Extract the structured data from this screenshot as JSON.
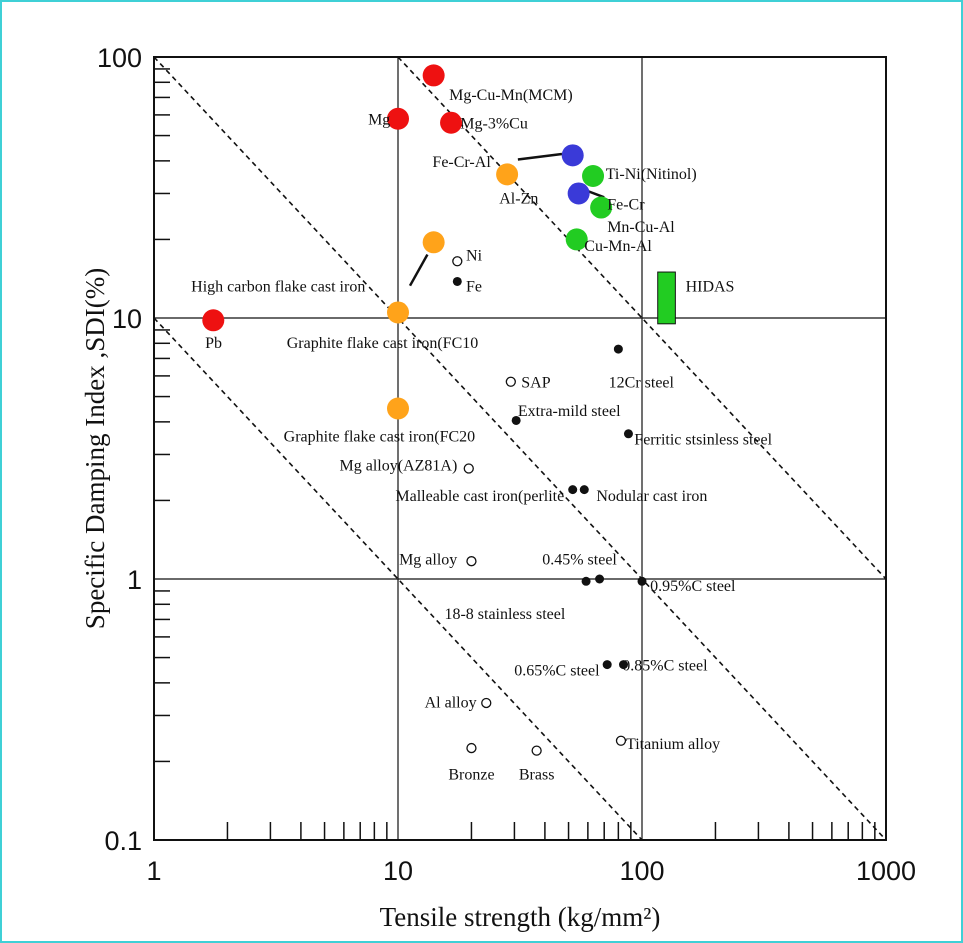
{
  "chart_data": {
    "type": "scatter",
    "xlabel": "Tensile strength (kg/mm²)",
    "ylabel": "Specific Damping Index ,SDI(%)",
    "xscale": "log",
    "yscale": "log",
    "xlim": [
      1,
      1000
    ],
    "ylim": [
      0.1,
      100
    ],
    "x_ticks": [
      "1",
      "10",
      "100",
      "1000"
    ],
    "y_ticks": [
      "0.1",
      "1",
      "10",
      "100"
    ],
    "grid": true,
    "guide_lines": [
      {
        "x1": 1,
        "y1": 100,
        "x2": 1000,
        "y2": 0.1
      },
      {
        "x1": 10,
        "y1": 100,
        "x2": 1000,
        "y2": 1
      },
      {
        "x1": 1,
        "y1": 10,
        "x2": 100,
        "y2": 0.1
      }
    ],
    "colors": {
      "red": "#ee1111",
      "orange": "#ffa31a",
      "blue": "#3a3ad8",
      "green": "#22cc22",
      "black": "#111111"
    },
    "points": [
      {
        "label": "Mg-Cu-Mn(MCM)",
        "x": 14,
        "y": 85,
        "color": "red",
        "style": "big",
        "lx": 16.2,
        "ly": 72,
        "anchor": "start"
      },
      {
        "label": "Mg",
        "x": 10,
        "y": 58,
        "color": "red",
        "style": "big",
        "lx": 9.3,
        "ly": 58,
        "anchor": "end"
      },
      {
        "label": "Mg-3%Cu",
        "x": 16.5,
        "y": 56,
        "color": "red",
        "style": "big",
        "lx": 18,
        "ly": 56,
        "anchor": "start"
      },
      {
        "label": "Pb",
        "x": 1.75,
        "y": 9.8,
        "color": "red",
        "style": "big",
        "lx": 1.62,
        "ly": 8.1,
        "anchor": "start"
      },
      {
        "label": "Fe-Cr-Al",
        "x": 52,
        "y": 42,
        "color": "blue",
        "style": "big",
        "lx": 24,
        "ly": 40,
        "anchor": "end",
        "leader": [
          31,
          40.5,
          47,
          42.5
        ]
      },
      {
        "label": "Fe-Cr",
        "x": 55,
        "y": 30,
        "color": "blue",
        "style": "big",
        "lx": 72,
        "ly": 27.5,
        "anchor": "start",
        "leader": [
          58,
          31,
          70,
          29
        ]
      },
      {
        "label": "Ti-Ni(Nitinol)",
        "x": 63,
        "y": 35,
        "color": "green",
        "style": "big",
        "lx": 71,
        "ly": 36,
        "anchor": "start"
      },
      {
        "label": "Mn-Cu-Al",
        "x": 68,
        "y": 26.5,
        "color": "green",
        "style": "big",
        "lx": 72,
        "ly": 22.5,
        "anchor": "start"
      },
      {
        "label": "Cu-Mn-Al",
        "x": 54,
        "y": 20,
        "color": "green",
        "style": "big",
        "lx": 58,
        "ly": 19,
        "anchor": "start"
      },
      {
        "label": "Al-Zn",
        "x": 28,
        "y": 35.5,
        "color": "orange",
        "style": "big",
        "lx": 26,
        "ly": 29,
        "anchor": "start"
      },
      {
        "label": "High carbon flake cast iron",
        "x": 14,
        "y": 19.5,
        "color": "orange",
        "style": "big",
        "lx": 1.42,
        "ly": 13.3,
        "anchor": "start",
        "leader": [
          13.2,
          17.5,
          11.2,
          13.3
        ]
      },
      {
        "label": "",
        "x": 10,
        "y": 10.5,
        "color": "orange",
        "style": "big"
      },
      {
        "label": "Graphite flake cast iron(FC10",
        "x": 10,
        "y": 10.5,
        "color": "orange",
        "style": "none",
        "lx": 3.5,
        "ly": 8.1,
        "anchor": "start"
      },
      {
        "label": "Graphite flake cast iron(FC20",
        "x": 10,
        "y": 4.5,
        "color": "orange",
        "style": "big",
        "lx": 3.4,
        "ly": 3.55,
        "anchor": "start"
      },
      {
        "label": "Ni",
        "x": 17.5,
        "y": 16.5,
        "color": "black",
        "style": "open",
        "lx": 19,
        "ly": 17.5,
        "anchor": "start"
      },
      {
        "label": "Fe",
        "x": 17.5,
        "y": 13.8,
        "color": "black",
        "style": "solid",
        "lx": 19,
        "ly": 13.3,
        "anchor": "start"
      },
      {
        "label": "SAP",
        "x": 29,
        "y": 5.7,
        "color": "black",
        "style": "open",
        "lx": 32,
        "ly": 5.7,
        "anchor": "start"
      },
      {
        "label": "12Cr steel",
        "x": 80,
        "y": 7.6,
        "color": "black",
        "style": "solid",
        "lx": 73,
        "ly": 5.7,
        "anchor": "start"
      },
      {
        "label": "Extra-mild steel",
        "x": 30.5,
        "y": 4.05,
        "color": "black",
        "style": "solid",
        "lx": 31,
        "ly": 4.45,
        "anchor": "start"
      },
      {
        "label": "Ferritic stsinless steel",
        "x": 88,
        "y": 3.6,
        "color": "black",
        "style": "solid",
        "lx": 93,
        "ly": 3.45,
        "anchor": "start"
      },
      {
        "label": "Mg alloy(AZ81A)",
        "x": 19.5,
        "y": 2.65,
        "color": "black",
        "style": "open",
        "lx": 17.5,
        "ly": 2.75,
        "anchor": "end"
      },
      {
        "label": "Malleable cast iron(perlite",
        "x": 52,
        "y": 2.2,
        "color": "black",
        "style": "solid",
        "lx": 48,
        "ly": 2.1,
        "anchor": "end"
      },
      {
        "label": "Nodular cast iron",
        "x": 58,
        "y": 2.2,
        "color": "black",
        "style": "solid",
        "lx": 65,
        "ly": 2.1,
        "anchor": "start"
      },
      {
        "label": "Mg alloy",
        "x": 20,
        "y": 1.17,
        "color": "black",
        "style": "open",
        "lx": 17.5,
        "ly": 1.2,
        "anchor": "end"
      },
      {
        "label": "0.45% steel",
        "x": 67,
        "y": 1.0,
        "color": "black",
        "style": "solid",
        "lx": 39,
        "ly": 1.2,
        "anchor": "start"
      },
      {
        "label": "",
        "x": 59,
        "y": 0.98,
        "color": "black",
        "style": "solid"
      },
      {
        "label": "0.95%C steel",
        "x": 100,
        "y": 0.98,
        "color": "black",
        "style": "solid",
        "lx": 108,
        "ly": 0.95,
        "anchor": "start"
      },
      {
        "label": "18-8 stainless steel",
        "x": 59,
        "y": 0.98,
        "color": "black",
        "style": "none",
        "lx": 15.5,
        "ly": 0.74,
        "anchor": "start"
      },
      {
        "label": "0.65%C steel",
        "x": 72,
        "y": 0.47,
        "color": "black",
        "style": "solid",
        "lx": 67,
        "ly": 0.45,
        "anchor": "end"
      },
      {
        "label": "0.85%C steel",
        "x": 84,
        "y": 0.47,
        "color": "black",
        "style": "solid",
        "lx": 83,
        "ly": 0.47,
        "anchor": "start"
      },
      {
        "label": "Al alloy",
        "x": 23,
        "y": 0.335,
        "color": "black",
        "style": "open",
        "lx": 21,
        "ly": 0.34,
        "anchor": "end"
      },
      {
        "label": "Bronze",
        "x": 20,
        "y": 0.225,
        "color": "black",
        "style": "open",
        "lx": 20,
        "ly": 0.18,
        "anchor": "middle"
      },
      {
        "label": "Brass",
        "x": 37,
        "y": 0.22,
        "color": "black",
        "style": "open",
        "lx": 37,
        "ly": 0.18,
        "anchor": "middle"
      },
      {
        "label": "Titanium alloy",
        "x": 82,
        "y": 0.24,
        "color": "black",
        "style": "open",
        "lx": 86,
        "ly": 0.235,
        "anchor": "start"
      }
    ],
    "hidas": {
      "label": "HIDAS",
      "x": [
        116,
        137
      ],
      "y": [
        9.5,
        15.0
      ],
      "color": "green",
      "lx": 190,
      "ly": 13.3
    }
  }
}
